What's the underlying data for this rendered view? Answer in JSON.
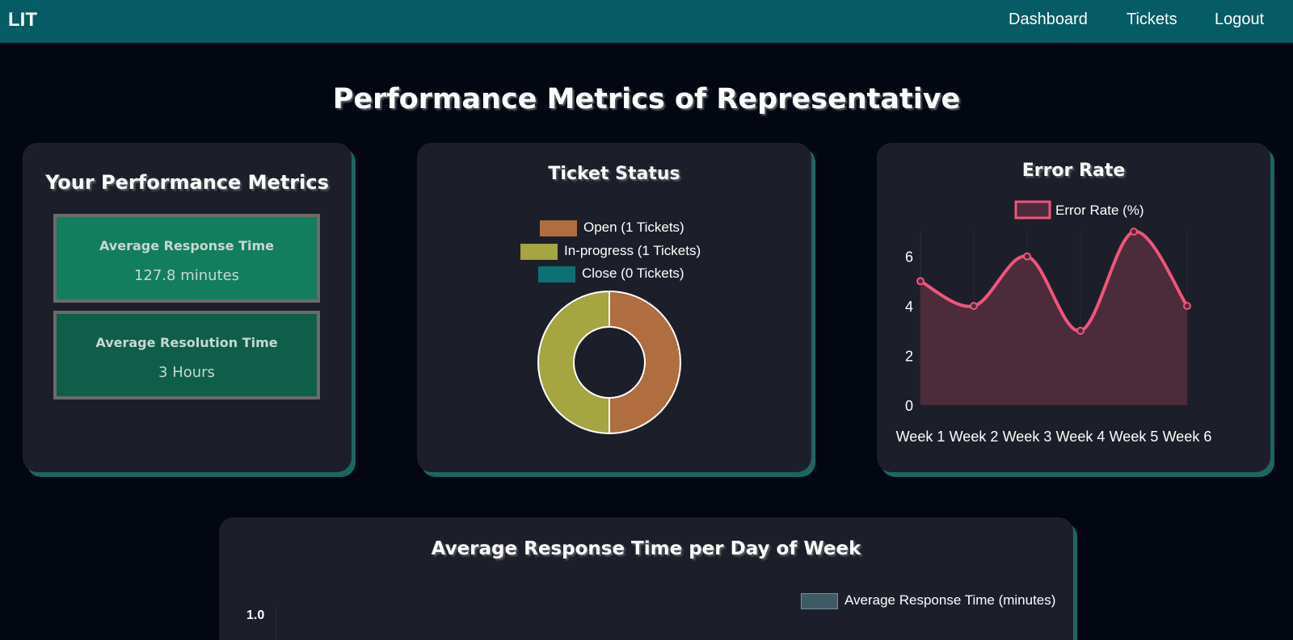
{
  "nav": {
    "brand": "LIT",
    "links": [
      "Dashboard",
      "Tickets",
      "Logout"
    ]
  },
  "page_title": "Performance Metrics of Representative",
  "metrics_card": {
    "title": "Your Performance Metrics",
    "items": [
      {
        "label": "Average Response Time",
        "value": "127.8 minutes",
        "color": "#137e5e"
      },
      {
        "label": "Average Resolution Time",
        "value": "3 Hours",
        "color": "#0e5e4a"
      }
    ]
  },
  "ticket_card": {
    "title": "Ticket Status",
    "chart_data": {
      "type": "pie",
      "subtype": "doughnut",
      "labels": [
        "Open (1 Tickets)",
        "In-progress (1 Tickets)",
        "Close (0 Tickets)"
      ],
      "values": [
        1,
        1,
        0
      ],
      "colors": [
        "#b06d40",
        "#a5a542",
        "#0d7173"
      ],
      "legend_position": "top"
    }
  },
  "error_card": {
    "title": "Error Rate",
    "chart_data": {
      "type": "area",
      "categories": [
        "Week 1",
        "Week 2",
        "Week 3",
        "Week 4",
        "Week 5",
        "Week 6"
      ],
      "series": [
        {
          "name": "Error Rate (%)",
          "values": [
            5,
            4,
            6,
            3,
            7,
            4
          ]
        }
      ],
      "yticks": [
        "0",
        "2",
        "4",
        "6"
      ],
      "ylim": [
        0,
        7
      ],
      "line_color": "#f0557a",
      "fill_color": "#4c2b3b",
      "legend_position": "top"
    }
  },
  "response_card": {
    "title": "Average Response Time per Day of Week",
    "chart_data": {
      "type": "bar",
      "series": [
        {
          "name": "Average Response Time (minutes)",
          "values": []
        }
      ],
      "yticks": [
        "1.0"
      ],
      "legend_position": "top-right",
      "swatch_color": "#3e5a66"
    }
  }
}
